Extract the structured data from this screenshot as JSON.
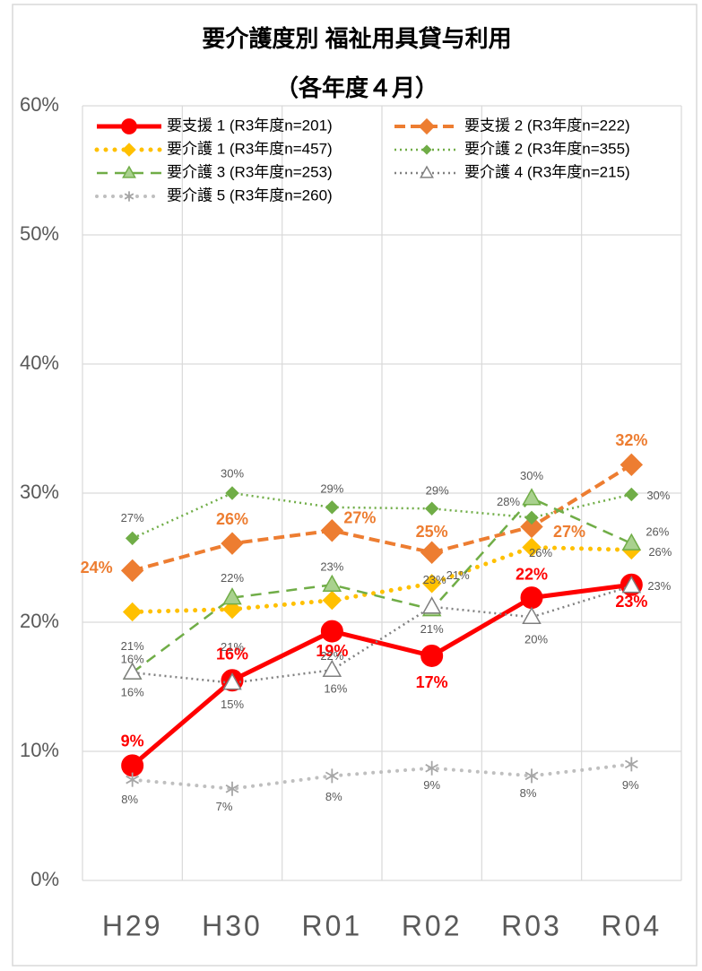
{
  "chart_data": {
    "type": "line",
    "title": "要介護度別 福祉用具貸与利用",
    "subtitle": "（各年度４月）",
    "categories": [
      "H29",
      "H30",
      "R01",
      "R02",
      "R03",
      "R04"
    ],
    "ylim": [
      0,
      60
    ],
    "yticks": [
      {
        "value": 0,
        "label": "0%"
      },
      {
        "value": 10,
        "label": "10%"
      },
      {
        "value": 20,
        "label": "20%"
      },
      {
        "value": 30,
        "label": "30%"
      },
      {
        "value": 40,
        "label": "40%"
      },
      {
        "value": 50,
        "label": "50%"
      },
      {
        "value": 60,
        "label": "60%"
      }
    ],
    "grid": true,
    "legend": "top",
    "series": [
      {
        "name": "要支援 1 (R3年度n=201)",
        "color": "#ff0000",
        "values": [
          8.9,
          15.5,
          19.3,
          17.4,
          21.9,
          22.9
        ],
        "value_labels": [
          "9%",
          "16%",
          "19%",
          "17%",
          "22%",
          "23%"
        ]
      },
      {
        "name": "要支援 2 (R3年度n=222)",
        "color": "#ed7d31",
        "values": [
          24.0,
          26.1,
          27.1,
          25.4,
          27.4,
          32.2
        ],
        "value_labels": [
          "24%",
          "26%",
          "27%",
          "25%",
          "27%",
          "32%"
        ]
      },
      {
        "name": "要介護 1 (R3年度n=457)",
        "color": "#ffc000",
        "values": [
          20.8,
          21.0,
          21.7,
          23.0,
          25.8,
          25.6
        ],
        "value_labels": [
          "21%",
          "21%",
          "22%",
          "23%",
          "26%",
          "26%"
        ]
      },
      {
        "name": "要介護 2 (R3年度n=355)",
        "color": "#70ad47",
        "values": [
          26.5,
          30.0,
          28.9,
          28.8,
          28.1,
          29.9
        ],
        "value_labels": [
          "27%",
          "30%",
          "29%",
          "29%",
          "28%",
          "30%"
        ]
      },
      {
        "name": "要介護 3 (R3年度n=253)",
        "color": "#70ad47",
        "values": [
          16.1,
          21.9,
          22.9,
          21.0,
          29.6,
          26.1
        ],
        "value_labels": [
          "16%",
          "22%",
          "23%",
          "21%",
          "30%",
          "26%"
        ]
      },
      {
        "name": "要介護 4 (R3年度n=215)",
        "color": "#808080",
        "values": [
          16.1,
          15.3,
          16.3,
          21.2,
          20.4,
          22.8
        ],
        "value_labels": [
          "16%",
          "15%",
          "16%",
          "21%",
          "20%",
          "23%"
        ]
      },
      {
        "name": "要介護 5 (R3年度n=260)",
        "color": "#bfbfbf",
        "values": [
          7.8,
          7.1,
          8.1,
          8.7,
          8.1,
          9.0
        ],
        "value_labels": [
          "8%",
          "7%",
          "8%",
          "9%",
          "8%",
          "9%"
        ]
      }
    ]
  }
}
